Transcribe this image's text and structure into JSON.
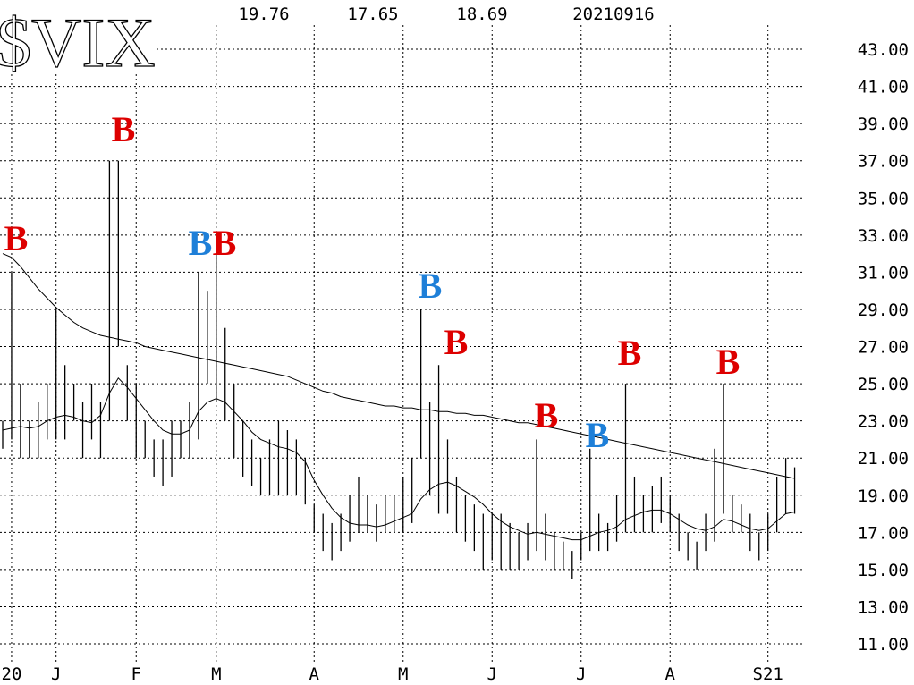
{
  "chart_data": {
    "type": "range_bar",
    "title": "$VIX",
    "header_values": [
      19.76,
      17.65,
      18.69
    ],
    "date": "20210916",
    "categories": [
      null,
      "20",
      null,
      null,
      null,
      null,
      "J",
      null,
      null,
      null,
      null,
      null,
      null,
      null,
      null,
      "F",
      null,
      null,
      null,
      null,
      null,
      null,
      null,
      null,
      "M",
      null,
      null,
      null,
      null,
      null,
      null,
      null,
      null,
      null,
      null,
      "A",
      null,
      null,
      null,
      null,
      null,
      null,
      null,
      null,
      null,
      "M",
      null,
      null,
      null,
      null,
      null,
      null,
      null,
      null,
      null,
      "J",
      null,
      null,
      null,
      null,
      null,
      null,
      null,
      null,
      null,
      "J",
      null,
      null,
      null,
      null,
      null,
      null,
      null,
      null,
      null,
      "A",
      null,
      null,
      null,
      null,
      null,
      null,
      null,
      null,
      null,
      null,
      "S21",
      null,
      null,
      null
    ],
    "high": [
      23,
      31,
      25,
      23,
      24,
      25,
      29,
      26,
      25,
      24,
      25,
      24,
      37,
      37,
      26,
      25,
      23,
      22,
      22,
      23,
      23,
      24,
      31,
      30,
      32,
      28,
      25,
      23,
      22,
      21,
      22,
      23,
      22.5,
      22,
      21,
      18.5,
      18,
      17.5,
      18,
      19,
      20,
      19,
      18.5,
      19,
      19,
      20,
      21,
      29,
      24,
      26,
      22,
      20,
      19,
      18.5,
      18,
      18,
      18,
      17.5,
      17,
      17.5,
      22,
      18,
      17,
      16.5,
      16,
      17,
      21.5,
      18,
      17.5,
      19,
      25,
      20,
      19,
      19.5,
      20,
      19,
      18,
      17,
      16.5,
      18,
      21.5,
      25,
      19,
      18.5,
      18,
      17,
      18,
      20,
      21,
      20.5
    ],
    "low": [
      21.5,
      22,
      21,
      21,
      21,
      22,
      22,
      22,
      23,
      21,
      22,
      21,
      23,
      27,
      23,
      21,
      21,
      20,
      19.5,
      20,
      21,
      21,
      22,
      25,
      24,
      23,
      21,
      20,
      19.5,
      19,
      19,
      19,
      19,
      19,
      18.5,
      17,
      16,
      15.5,
      16,
      16.5,
      17,
      17,
      16.5,
      17,
      17,
      17,
      17.5,
      21,
      19,
      18,
      18,
      17,
      16.5,
      16,
      15,
      15.5,
      15,
      15,
      15,
      15.5,
      16,
      15.5,
      15,
      15,
      14.5,
      15.5,
      16,
      16,
      16,
      16.5,
      17,
      17,
      17,
      17,
      17.5,
      17,
      16,
      15.5,
      15,
      16,
      16.5,
      18,
      17,
      17,
      16,
      15.5,
      16,
      17,
      18,
      18
    ],
    "color": "#000000",
    "moving_averages": [
      {
        "color": "#000000",
        "values": [
          32,
          31.8,
          31.3,
          30.7,
          30.1,
          29.6,
          29.1,
          28.7,
          28.3,
          28.0,
          27.8,
          27.6,
          27.5,
          27.4,
          27.3,
          27.2,
          27.0,
          26.9,
          26.8,
          26.7,
          26.6,
          26.5,
          26.4,
          26.3,
          26.2,
          26.1,
          26.0,
          25.9,
          25.8,
          25.7,
          25.6,
          25.5,
          25.4,
          25.2,
          25.0,
          24.8,
          24.6,
          24.5,
          24.3,
          24.2,
          24.1,
          24.0,
          23.9,
          23.8,
          23.8,
          23.7,
          23.7,
          23.6,
          23.6,
          23.5,
          23.5,
          23.4,
          23.4,
          23.3,
          23.3,
          23.2,
          23.1,
          23.0,
          22.9,
          22.9,
          22.8,
          22.7,
          22.6,
          22.5,
          22.4,
          22.3,
          22.2,
          22.1,
          22.0,
          21.9,
          21.8,
          21.7,
          21.6,
          21.5,
          21.4,
          21.3,
          21.2,
          21.1,
          21.0,
          20.9,
          20.8,
          20.7,
          20.6,
          20.5,
          20.4,
          20.3,
          20.2,
          20.1,
          20.0,
          19.9
        ]
      },
      {
        "color": "#000000",
        "values": [
          22.5,
          22.6,
          22.7,
          22.6,
          22.7,
          23,
          23.2,
          23.3,
          23.2,
          23,
          22.9,
          23.3,
          24.5,
          25.3,
          24.8,
          24.2,
          23.6,
          23.0,
          22.5,
          22.3,
          22.3,
          22.5,
          23.5,
          24.0,
          24.2,
          24.0,
          23.5,
          23.0,
          22.4,
          22.0,
          21.8,
          21.6,
          21.5,
          21.3,
          20.8,
          19.8,
          19.0,
          18.3,
          17.8,
          17.5,
          17.4,
          17.4,
          17.3,
          17.4,
          17.6,
          17.8,
          18.0,
          18.8,
          19.3,
          19.6,
          19.7,
          19.5,
          19.2,
          18.9,
          18.5,
          18.0,
          17.6,
          17.3,
          17.1,
          16.9,
          17.0,
          16.9,
          16.8,
          16.7,
          16.6,
          16.6,
          16.8,
          17.0,
          17.1,
          17.3,
          17.7,
          17.9,
          18.1,
          18.2,
          18.2,
          18.0,
          17.7,
          17.4,
          17.2,
          17.1,
          17.3,
          17.7,
          17.6,
          17.4,
          17.2,
          17.1,
          17.2,
          17.6,
          18.0,
          18.1
        ]
      }
    ],
    "annotations": [
      {
        "text": "B",
        "color": "#dd0000"
      },
      {
        "text": "B",
        "color": "#dd0000"
      },
      {
        "text": "B",
        "color": "#1e7fd8"
      },
      {
        "text": "B",
        "color": "#dd0000"
      },
      {
        "text": "B",
        "color": "#1e7fd8"
      },
      {
        "text": "B",
        "color": "#dd0000"
      },
      {
        "text": "B",
        "color": "#dd0000"
      },
      {
        "text": "B",
        "color": "#1e7fd8"
      },
      {
        "text": "B",
        "color": "#dd0000"
      },
      {
        "text": "B",
        "color": "#dd0000"
      }
    ],
    "ylim": [
      11,
      43
    ],
    "yticks": [
      {
        "value": 43,
        "label": "43.00"
      },
      {
        "value": 41,
        "label": "41.00"
      },
      {
        "value": 39,
        "label": "39.00"
      },
      {
        "value": 37,
        "label": "37.00"
      },
      {
        "value": 35,
        "label": "35.00"
      },
      {
        "value": 33,
        "label": "33.00"
      },
      {
        "value": 31,
        "label": "31.00"
      },
      {
        "value": 29,
        "label": "29.00"
      },
      {
        "value": 27,
        "label": "27.00"
      },
      {
        "value": 25,
        "label": "25.00"
      },
      {
        "value": 23,
        "label": "23.00"
      },
      {
        "value": 21,
        "label": "21.00"
      },
      {
        "value": 19,
        "label": "19.00"
      },
      {
        "value": 17,
        "label": "17.00"
      },
      {
        "value": 15,
        "label": "15.00"
      },
      {
        "value": 13,
        "label": "13.00"
      },
      {
        "value": 11,
        "label": "11.00"
      }
    ],
    "grid": true
  }
}
